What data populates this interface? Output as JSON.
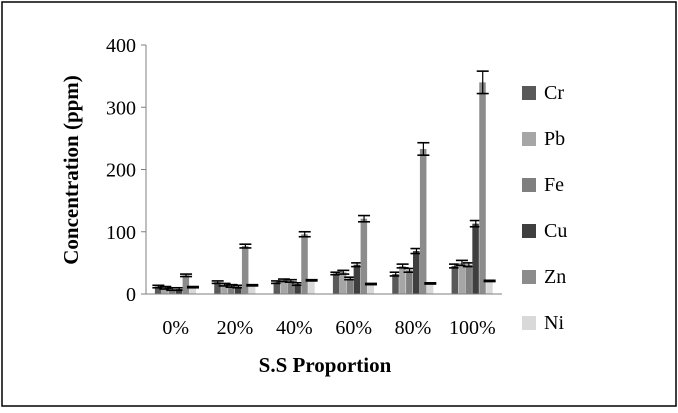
{
  "chart_data": {
    "type": "bar",
    "xlabel": "S.S Proportion",
    "ylabel": "Concentration (ppm)",
    "ylim": [
      0,
      400
    ],
    "yticks": [
      0,
      100,
      200,
      300,
      400
    ],
    "categories": [
      "0%",
      "20%",
      "40%",
      "60%",
      "80%",
      "100%"
    ],
    "legend_position": "right",
    "series": [
      {
        "name": "Cr",
        "color": "#595959",
        "values": [
          12,
          19,
          19,
          33,
          32,
          45
        ],
        "errors": [
          2,
          2,
          2,
          2,
          3,
          3
        ]
      },
      {
        "name": "Pb",
        "color": "#a6a6a6",
        "values": [
          10,
          15,
          22,
          35,
          45,
          50
        ],
        "errors": [
          2,
          2,
          2,
          3,
          3,
          4
        ]
      },
      {
        "name": "Fe",
        "color": "#7f7f7f",
        "values": [
          8,
          13,
          21,
          25,
          38,
          47
        ],
        "errors": [
          2,
          2,
          2,
          2,
          3,
          3
        ]
      },
      {
        "name": "Cu",
        "color": "#3f3f3f",
        "values": [
          8,
          12,
          16,
          47,
          69,
          113
        ],
        "errors": [
          2,
          2,
          2,
          3,
          4,
          5
        ]
      },
      {
        "name": "Zn",
        "color": "#8c8c8c",
        "values": [
          30,
          77,
          96,
          121,
          233,
          340
        ],
        "errors": [
          2,
          3,
          4,
          5,
          10,
          18
        ]
      },
      {
        "name": "Ni",
        "color": "#d9d9d9",
        "values": [
          11,
          14,
          22,
          16,
          17,
          21
        ],
        "errors": [
          1,
          1,
          1,
          1,
          1,
          1
        ]
      }
    ]
  }
}
